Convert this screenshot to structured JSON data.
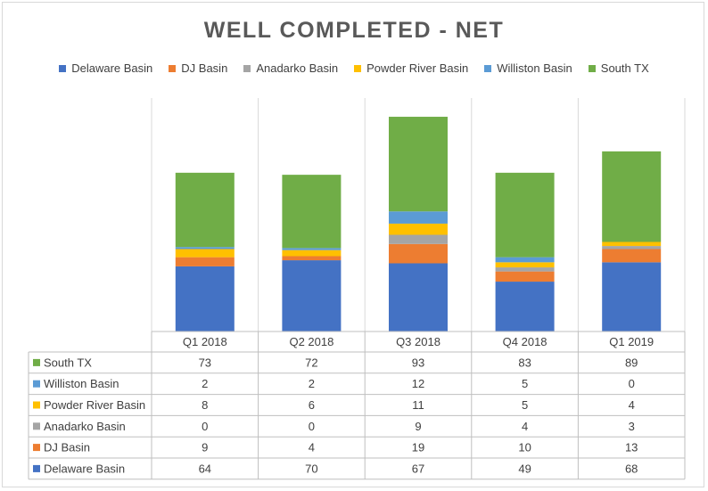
{
  "chart_data": {
    "type": "bar",
    "stacked": true,
    "title": "WELL COMPLETED - NET",
    "categories": [
      "Q1 2018",
      "Q2 2018",
      "Q3 2018",
      "Q4 2018",
      "Q1 2019"
    ],
    "series": [
      {
        "name": "Delaware Basin",
        "color": "#4472c4",
        "values": [
          64,
          70,
          67,
          49,
          68
        ]
      },
      {
        "name": "DJ Basin",
        "color": "#ed7d31",
        "values": [
          9,
          4,
          19,
          10,
          13
        ]
      },
      {
        "name": "Anadarko Basin",
        "color": "#a5a5a5",
        "values": [
          0,
          0,
          9,
          4,
          3
        ]
      },
      {
        "name": "Powder River Basin",
        "color": "#ffc000",
        "values": [
          8,
          6,
          11,
          5,
          4
        ]
      },
      {
        "name": "Williston Basin",
        "color": "#5b9bd5",
        "values": [
          2,
          2,
          12,
          5,
          0
        ]
      },
      {
        "name": "South TX",
        "color": "#70ad47",
        "values": [
          73,
          72,
          93,
          83,
          89
        ]
      }
    ],
    "table_row_order": [
      "South TX",
      "Williston Basin",
      "Powder River Basin",
      "Anadarko Basin",
      "DJ Basin",
      "Delaware Basin"
    ],
    "legend_position": "top",
    "data_table": true,
    "gridlines": "vertical category separators"
  }
}
